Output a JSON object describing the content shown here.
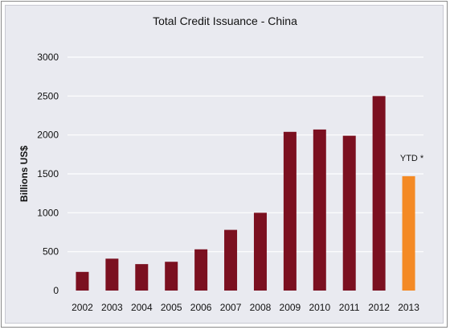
{
  "chart_data": {
    "type": "bar",
    "title": "Total Credit Issuance - China",
    "xlabel": "",
    "ylabel": "Billions US$",
    "ylim": [
      0,
      3000
    ],
    "yticks": [
      0,
      500,
      1000,
      1500,
      2000,
      2500,
      3000
    ],
    "grid": true,
    "legend": "none",
    "categories": [
      "2002",
      "2003",
      "2004",
      "2005",
      "2006",
      "2007",
      "2008",
      "2009",
      "2010",
      "2011",
      "2012",
      "2013"
    ],
    "values": [
      240,
      410,
      340,
      370,
      530,
      780,
      1000,
      2040,
      2070,
      1990,
      2500,
      1470
    ],
    "bar_colors": [
      "#7b1020",
      "#7b1020",
      "#7b1020",
      "#7b1020",
      "#7b1020",
      "#7b1020",
      "#7b1020",
      "#7b1020",
      "#7b1020",
      "#7b1020",
      "#7b1020",
      "#f48a25"
    ],
    "annotations": [
      {
        "category": "2013",
        "text": "YTD *"
      }
    ]
  }
}
